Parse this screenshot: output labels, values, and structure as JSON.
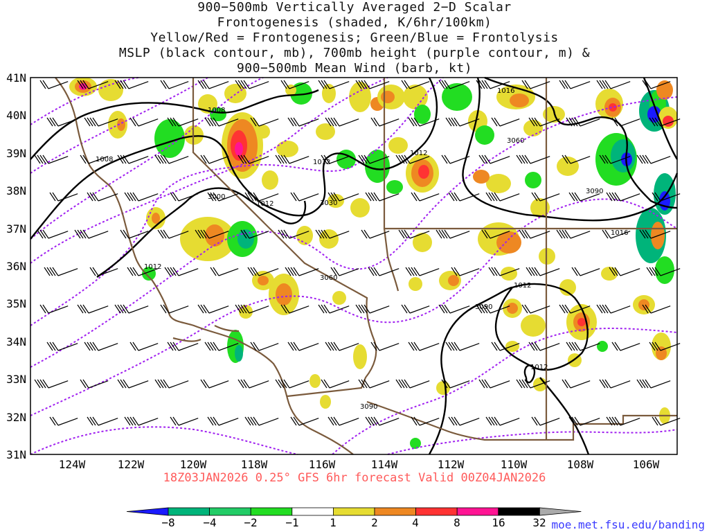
{
  "title_lines": [
    "900−500mb Vertically Averaged 2−D Scalar",
    "Frontogenesis (shaded, K/6hr/100km)",
    "Yellow/Red = Frontogenesis;  Green/Blue = Frontolysis",
    "MSLP (black contour, mb), 700mb height (purple contour, m) &",
    "900−500mb Mean Wind (barb, kt)"
  ],
  "valid_text": "18Z03JAN2026 0.25° GFS 6hr forecast Valid 00Z04JAN2026",
  "credit": "moe.met.fsu.edu/banding",
  "lat_labels": [
    "41N",
    "40N",
    "39N",
    "38N",
    "37N",
    "36N",
    "35N",
    "34N",
    "33N",
    "32N",
    "31N"
  ],
  "lon_labels": [
    "124W",
    "122W",
    "120W",
    "118W",
    "116W",
    "114W",
    "112W",
    "110W",
    "108W",
    "106W"
  ],
  "colorbar": {
    "labels": [
      "−8",
      "−4",
      "−2",
      "−1",
      "1",
      "2",
      "4",
      "8",
      "16",
      "32"
    ],
    "colors": [
      "#1a1aff",
      "#00b47a",
      "#22cc66",
      "#22dd22",
      "#ffffff",
      "#e6dc32",
      "#ee8822",
      "#ff3333",
      "#ff1493",
      "#000000",
      "#aaaaaa"
    ]
  },
  "mslp_labels": [
    "1008",
    "1008",
    "1012",
    "1012",
    "1012",
    "1012",
    "1016",
    "1016",
    "1012",
    "1012"
  ],
  "height_labels": [
    "3000",
    "3030",
    "3060",
    "3090",
    "3060",
    "3090",
    "3090"
  ],
  "colors": {
    "mslp": "#000000",
    "height": "#a020f0",
    "border": "#7a5a3c",
    "barb": "#000000"
  }
}
